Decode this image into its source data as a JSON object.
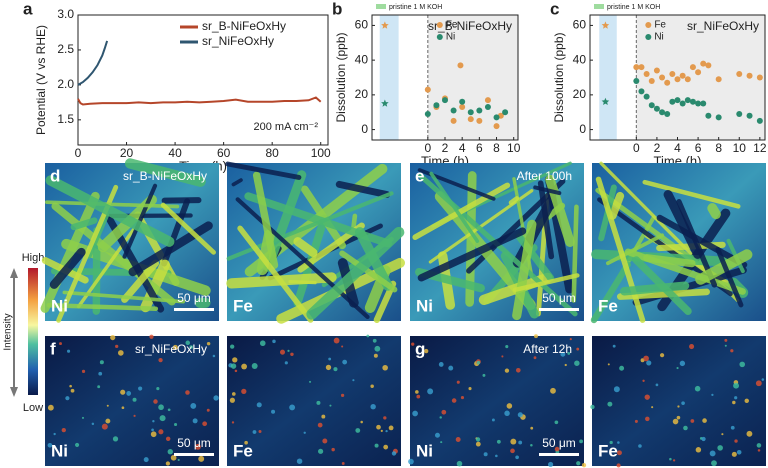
{
  "chart_data": [
    {
      "type": "line",
      "panel": "a",
      "xlabel": "Time (h)",
      "ylabel": "Potential (V vs RHE)",
      "annotation": "200 mA cm⁻²",
      "xlim": [
        0,
        103
      ],
      "xticks": [
        0,
        20,
        40,
        60,
        80,
        100
      ],
      "ylim": [
        1.14,
        3.0
      ],
      "yticks": [
        1.5,
        {
          "value": 2,
          "label": "2.0"
        },
        2.5,
        {
          "value": 3,
          "label": "3.0"
        }
      ],
      "legend": "upper right",
      "series": [
        {
          "name": "sr_B-NiFeOxHy",
          "color": "#b5462a",
          "x": [
            0,
            1,
            2,
            5,
            10,
            15,
            20,
            25,
            30,
            35,
            40,
            45,
            50,
            55,
            60,
            65,
            70,
            75,
            80,
            85,
            90,
            95,
            98,
            100
          ],
          "values": [
            1.8,
            1.74,
            1.72,
            1.73,
            1.74,
            1.74,
            1.74,
            1.75,
            1.74,
            1.75,
            1.75,
            1.76,
            1.75,
            1.76,
            1.77,
            1.79,
            1.76,
            1.76,
            1.76,
            1.77,
            1.77,
            1.78,
            1.82,
            1.76
          ]
        },
        {
          "name": "sr_NiFeOxHy",
          "color": "#2f5670",
          "x": [
            0,
            2,
            4,
            6,
            8,
            10,
            11,
            12
          ],
          "values": [
            2.0,
            2.04,
            2.1,
            2.18,
            2.28,
            2.42,
            2.52,
            2.63
          ]
        }
      ]
    },
    {
      "type": "scatter",
      "panel": "b",
      "title": "sr_B-NiFeOxHy",
      "xlabel": "Time (h)",
      "ylabel": "Dissolution (ppb)",
      "xlim": [
        -6.5,
        10.5
      ],
      "xticks": [
        0,
        2,
        4,
        6,
        8,
        10
      ],
      "ylim": [
        -6,
        66
      ],
      "yticks": [
        0,
        20,
        40,
        60
      ],
      "pristine": {
        "label": "pristine 1 M KOH",
        "xrange": [
          -5.6,
          -3.4
        ],
        "x": -5,
        "fe": 60,
        "ni": 15
      },
      "series": [
        {
          "name": "Fe",
          "color": "#e39a4e",
          "x": [
            0,
            1,
            2,
            3,
            3.8,
            4,
            5,
            6,
            7,
            8,
            8.5
          ],
          "values": [
            23,
            13,
            18,
            5,
            37,
            13,
            6,
            5,
            17,
            2,
            8
          ]
        },
        {
          "name": "Ni",
          "color": "#2a8a6e",
          "x": [
            0,
            1,
            2,
            3,
            4,
            5,
            6,
            7,
            8,
            9
          ],
          "values": [
            9,
            14,
            17,
            11,
            16,
            10,
            11,
            13,
            7,
            10
          ]
        }
      ]
    },
    {
      "type": "scatter",
      "panel": "c",
      "title": "sr_NiFeOxHy",
      "xlabel": "Time (h)",
      "ylabel": "Dissolution (ppb)",
      "xlim": [
        -4.5,
        12.5
      ],
      "xticks": [
        0,
        2,
        4,
        6,
        8,
        10,
        12
      ],
      "ylim": [
        -6,
        66
      ],
      "yticks": [
        0,
        20,
        40,
        60
      ],
      "pristine": {
        "label": "pristine 1 M KOH",
        "xrange": [
          -3.6,
          -1.9
        ],
        "x": -3,
        "fe": 60,
        "ni": 16
      },
      "series": [
        {
          "name": "Fe",
          "color": "#e39a4e",
          "x": [
            0,
            0.5,
            1,
            1.5,
            2,
            2.5,
            3,
            3.5,
            4,
            4.5,
            5,
            5.5,
            6,
            6.5,
            7,
            8,
            10,
            11,
            12
          ],
          "values": [
            36,
            36,
            32,
            28,
            34,
            30,
            27,
            32,
            29,
            31,
            29,
            36,
            33,
            38,
            37,
            29,
            32,
            31,
            30
          ]
        },
        {
          "name": "Ni",
          "color": "#2a8a6e",
          "x": [
            0,
            0.5,
            1,
            1.5,
            2,
            2.5,
            3,
            3.5,
            4,
            4.5,
            5,
            5.5,
            6,
            6.5,
            7,
            8,
            10,
            11,
            12
          ],
          "values": [
            28,
            22,
            19,
            14,
            12,
            10,
            9,
            16,
            17,
            15,
            17,
            16,
            15,
            15,
            8,
            7,
            9,
            8,
            5
          ]
        }
      ]
    }
  ],
  "image_panels": {
    "colorbar": {
      "high": "High",
      "low": "Low",
      "label": "Intensity"
    },
    "panels": [
      {
        "letter": "d",
        "caption": "sr_B-NiFeOxHy",
        "left": "Ni",
        "right": "Fe",
        "scale": "50 μm"
      },
      {
        "letter": "e",
        "caption": "After 100h",
        "left": "Ni",
        "right": "Fe",
        "scale": "50 μm"
      },
      {
        "letter": "f",
        "caption": "sr_NiFeOxHy",
        "left": "Ni",
        "right": "Fe",
        "scale": "50 μm"
      },
      {
        "letter": "g",
        "caption": "After 12h",
        "left": "Ni",
        "right": "Fe",
        "scale": "50 μm"
      }
    ]
  }
}
